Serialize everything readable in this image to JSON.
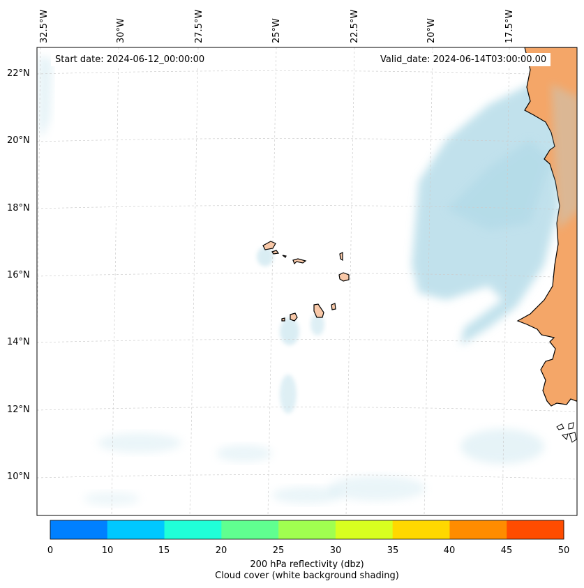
{
  "map": {
    "start_date": "Start date: 2024-06-12_00:00:00",
    "valid_date": "Valid_date: 2024-06-14T03:00:00.00",
    "longitude_labels": [
      "32.5°W",
      "30°W",
      "27.5°W",
      "25°W",
      "22.5°W",
      "20°W",
      "17.5°W"
    ],
    "latitude_labels": [
      "22°N",
      "20°N",
      "18°N",
      "16°N",
      "14°N",
      "12°N",
      "10°N"
    ],
    "features": [
      "Cape Verde islands",
      "West African coastline (Mauritania, Senegal, Gambia, Guinea-Bissau)"
    ]
  },
  "colorbar": {
    "ticks": [
      "0",
      "10",
      "15",
      "20",
      "25",
      "30",
      "35",
      "40",
      "45",
      "50"
    ],
    "colors": [
      "#0080ff",
      "#00c8ff",
      "#20ffd8",
      "#60ff90",
      "#a0ff50",
      "#d8ff20",
      "#ffd800",
      "#ff8c00",
      "#ff4c00"
    ],
    "label_line1": "200 hPa reflectivity (dbz)",
    "label_line2": "Cloud cover (white background shading)"
  },
  "colors": {
    "land": "#f4a668",
    "cloud": "#add8e6",
    "coast": "#000000",
    "grid": "#cccccc"
  }
}
